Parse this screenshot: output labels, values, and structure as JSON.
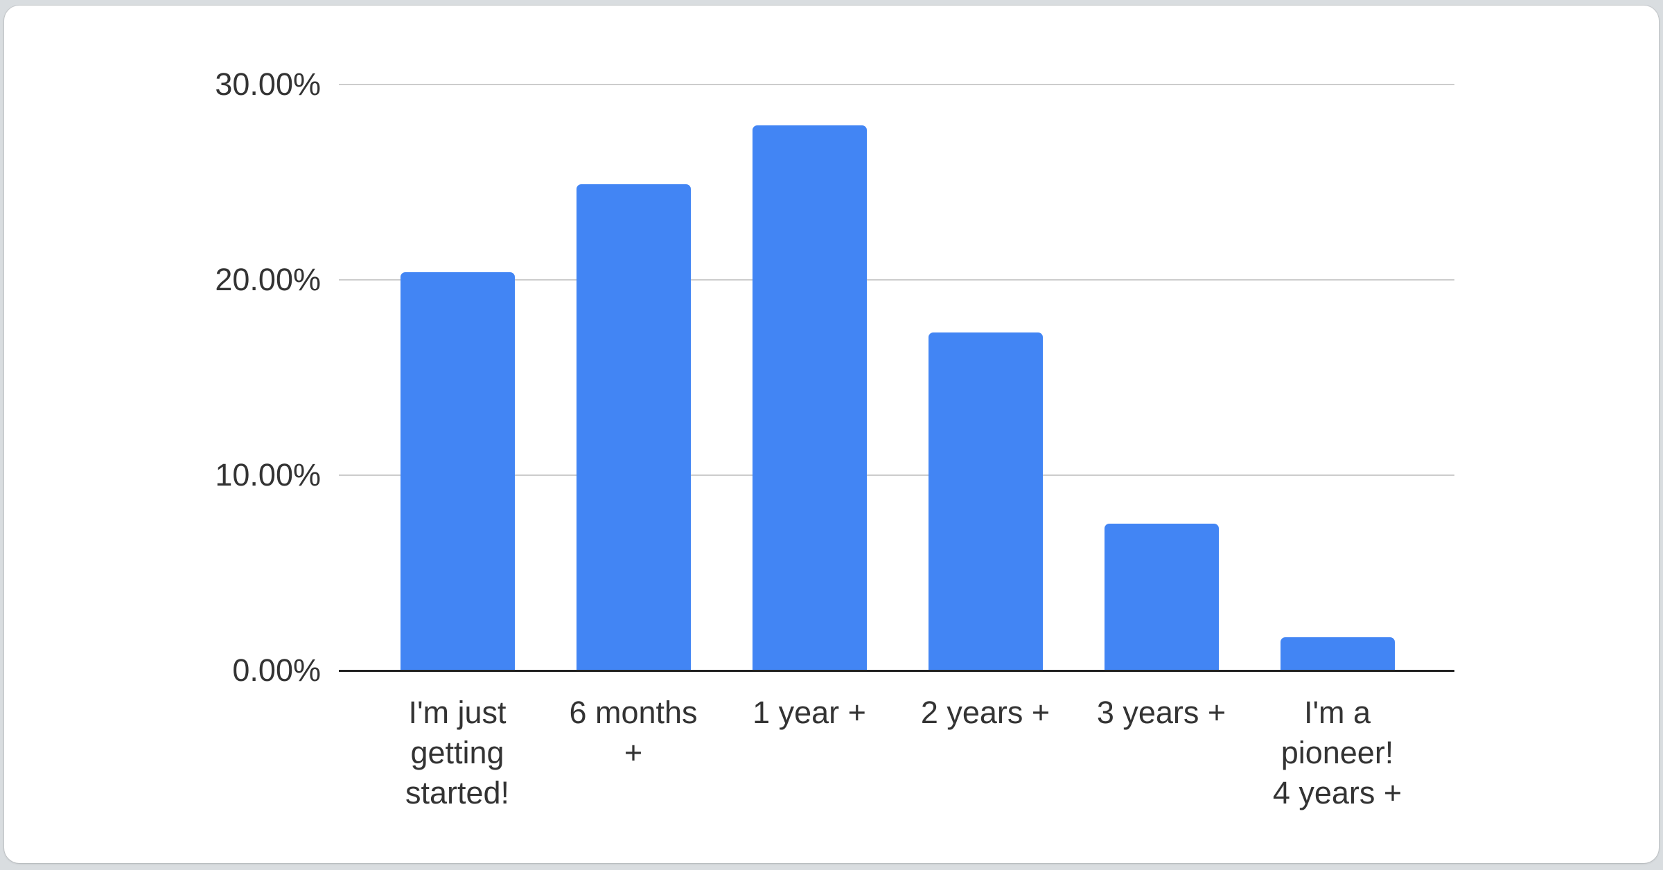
{
  "chart_data": {
    "type": "bar",
    "title": "",
    "xlabel": "",
    "ylabel": "",
    "categories": [
      "I'm just getting started!",
      "6 months +",
      "1 year +",
      "2 years +",
      "3 years +",
      "I'm a pioneer! 4 years +"
    ],
    "category_lines": [
      [
        "I'm just",
        "getting",
        "started!"
      ],
      [
        "6 months",
        "+"
      ],
      [
        "1 year +"
      ],
      [
        "2 years +"
      ],
      [
        "3 years +"
      ],
      [
        "I'm a",
        "pioneer!",
        "4 years +"
      ]
    ],
    "values": [
      20.4,
      24.9,
      27.9,
      17.3,
      7.5,
      1.7
    ],
    "unit": "%",
    "y_ticks": [
      "0.00%",
      "10.00%",
      "20.00%",
      "30.00%"
    ],
    "y_tick_values": [
      0,
      10,
      20,
      30
    ],
    "ylim": [
      0,
      30
    ],
    "grid": true,
    "legend": "none",
    "bar_color": "#4285f4",
    "gridline_color": "#cccccc",
    "axis_color": "#222222",
    "label_color": "#333333",
    "card_background": "#ffffff",
    "page_background": "#d9dde0"
  }
}
